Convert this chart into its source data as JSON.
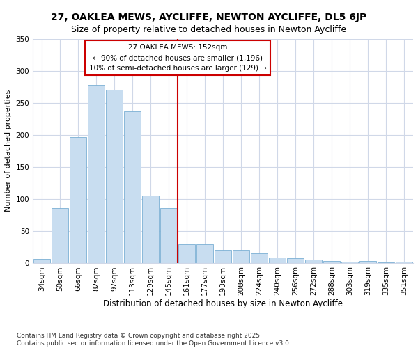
{
  "title1": "27, OAKLEA MEWS, AYCLIFFE, NEWTON AYCLIFFE, DL5 6JP",
  "title2": "Size of property relative to detached houses in Newton Aycliffe",
  "xlabel": "Distribution of detached houses by size in Newton Aycliffe",
  "ylabel": "Number of detached properties",
  "categories": [
    "34sqm",
    "50sqm",
    "66sqm",
    "82sqm",
    "97sqm",
    "113sqm",
    "129sqm",
    "145sqm",
    "161sqm",
    "177sqm",
    "193sqm",
    "208sqm",
    "224sqm",
    "240sqm",
    "256sqm",
    "272sqm",
    "288sqm",
    "303sqm",
    "319sqm",
    "335sqm",
    "351sqm"
  ],
  "values": [
    6,
    85,
    196,
    278,
    270,
    237,
    105,
    85,
    29,
    29,
    20,
    20,
    15,
    8,
    7,
    5,
    3,
    2,
    3,
    1,
    2
  ],
  "bar_color": "#c8ddf0",
  "bar_edge_color": "#7aafd4",
  "vline_x": 7.5,
  "vline_color": "#cc0000",
  "annotation_title": "27 OAKLEA MEWS: 152sqm",
  "annotation_line1": "← 90% of detached houses are smaller (1,196)",
  "annotation_line2": "10% of semi-detached houses are larger (129) →",
  "footnote1": "Contains HM Land Registry data © Crown copyright and database right 2025.",
  "footnote2": "Contains public sector information licensed under the Open Government Licence v3.0.",
  "bg_color": "#ffffff",
  "plot_bg_color": "#ffffff",
  "grid_color": "#d0d8e8",
  "ylim": [
    0,
    350
  ],
  "yticks": [
    0,
    50,
    100,
    150,
    200,
    250,
    300,
    350
  ],
  "title1_fontsize": 10,
  "title2_fontsize": 9,
  "xlabel_fontsize": 8.5,
  "ylabel_fontsize": 8,
  "tick_fontsize": 7.5,
  "footnote_fontsize": 6.5,
  "ann_fontsize": 7.5
}
